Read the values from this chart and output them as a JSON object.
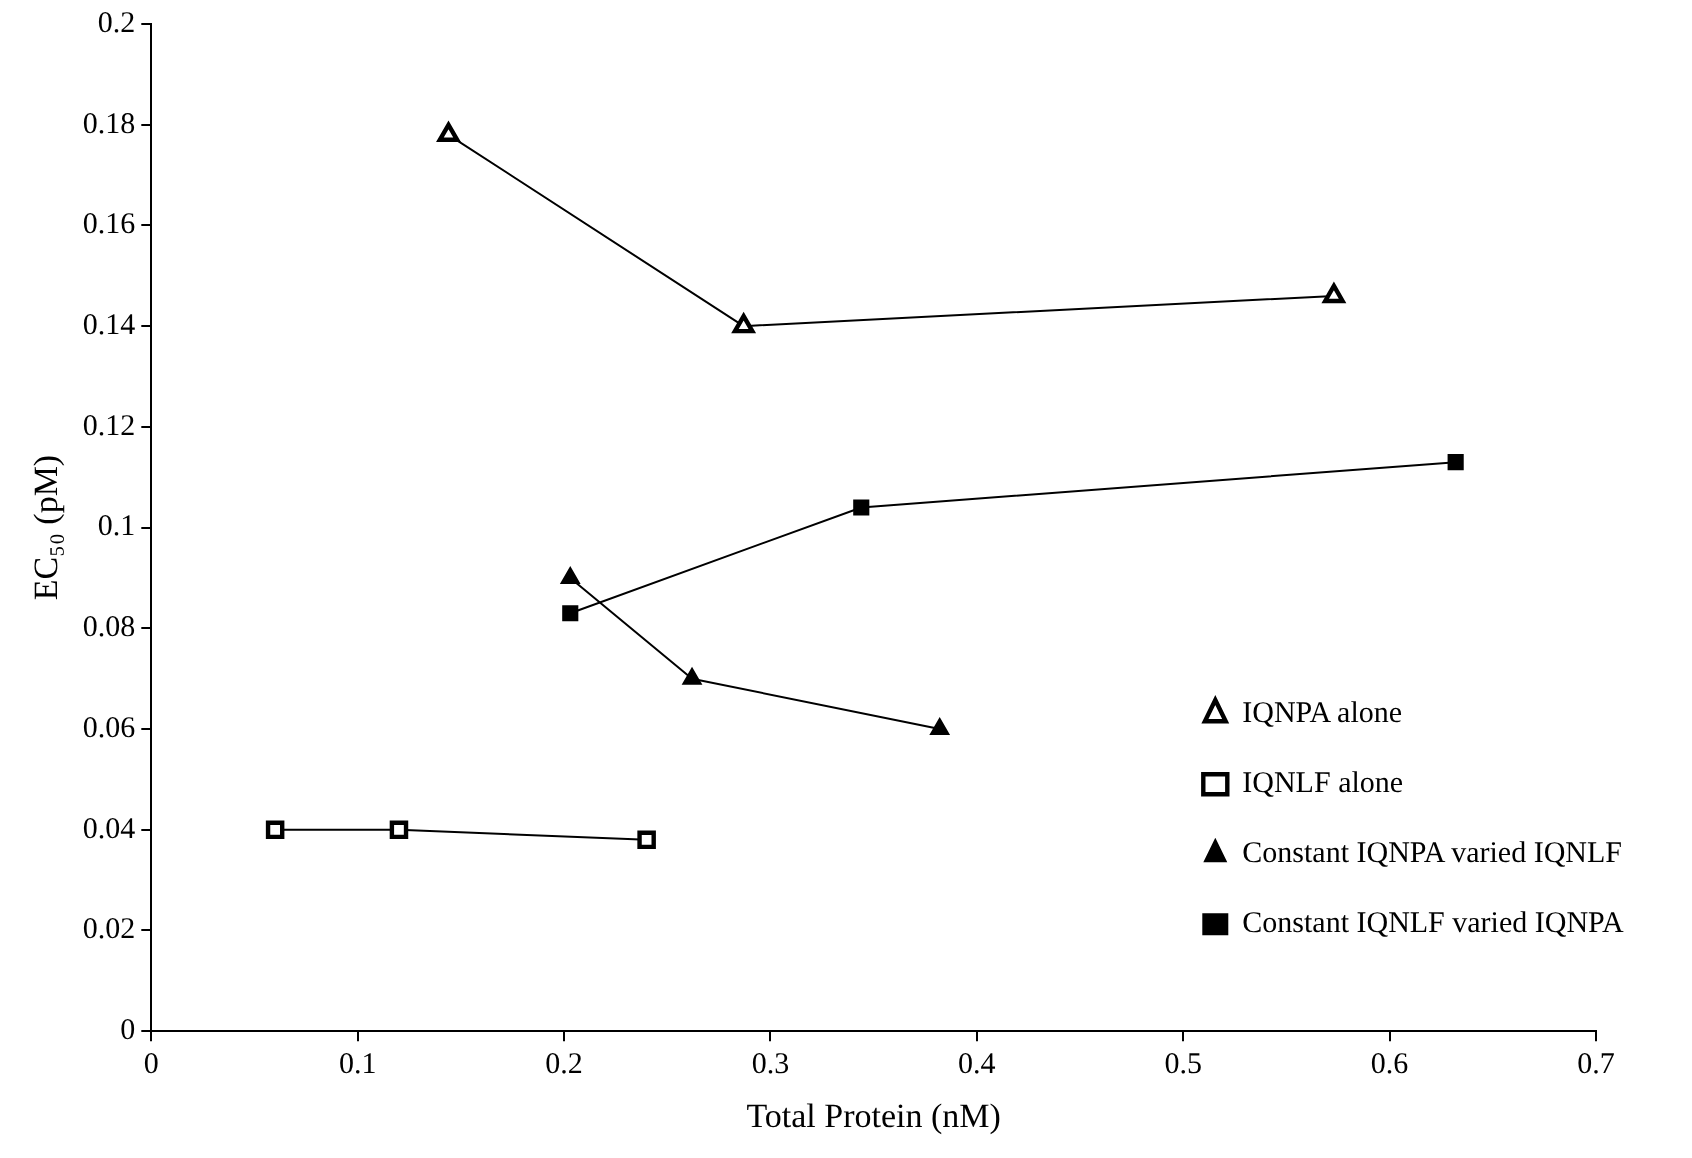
{
  "chart_data": {
    "type": "line",
    "xlabel": "Total Protein (nM)",
    "ylabel": "EC₅₀ (pM)",
    "xlim": [
      0,
      0.7
    ],
    "xticks": [
      0,
      0.1,
      0.2,
      0.3,
      0.4,
      0.5,
      0.6,
      0.7
    ],
    "ylim": [
      0,
      0.2
    ],
    "yticks": [
      0,
      0.02,
      0.04,
      0.06,
      0.08,
      0.1,
      0.12,
      0.14,
      0.16,
      0.18,
      0.2
    ],
    "grid": false,
    "legend": "bottom right",
    "line_style": "solid",
    "series": [
      {
        "name": "IQNPA alone",
        "color": "#000000",
        "marker": "triangle",
        "x": [
          0.144,
          0.287,
          0.573
        ],
        "values": [
          0.178,
          0.14,
          0.146
        ]
      },
      {
        "name": "IQNLF alone",
        "color": "#000000",
        "marker": "square",
        "x": [
          0.06,
          0.12,
          0.24
        ],
        "values": [
          0.04,
          0.04,
          0.038
        ]
      },
      {
        "name": "Constant IQNPA varied IQNLF",
        "color": "#000000",
        "marker": "triangle",
        "x": [
          0.203,
          0.262,
          0.382
        ],
        "values": [
          0.09,
          0.07,
          0.06
        ]
      },
      {
        "name": "Constant IQNLF varied IQNPA",
        "color": "#000000",
        "marker": "square",
        "x": [
          0.203,
          0.344,
          0.632
        ],
        "values": [
          0.083,
          0.104,
          0.113
        ]
      }
    ]
  }
}
